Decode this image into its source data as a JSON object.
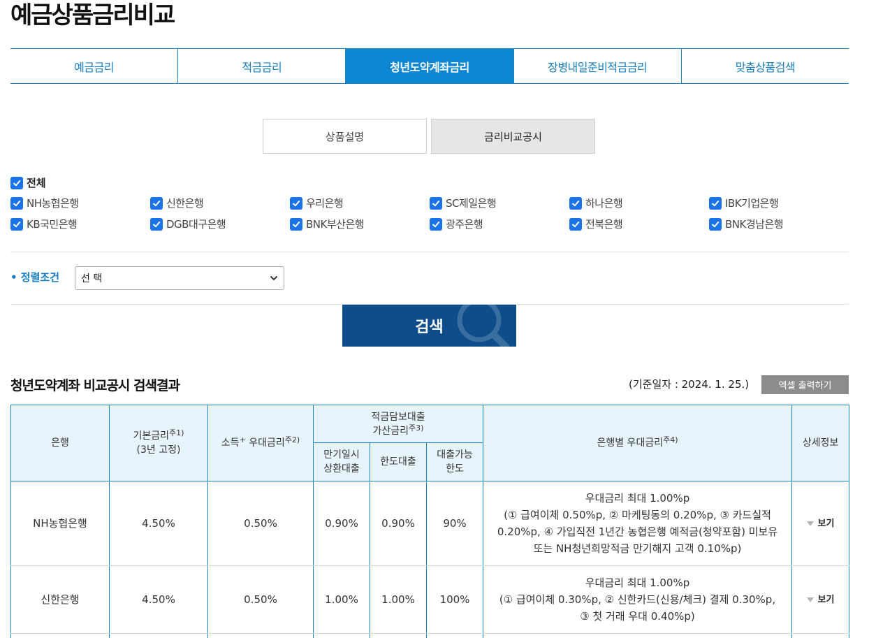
{
  "page_title": "예금상품금리비교",
  "main_tabs": [
    {
      "label": "예금금리"
    },
    {
      "label": "적금금리"
    },
    {
      "label": "청년도약계좌금리"
    },
    {
      "label": "장병내일준비적금금리"
    },
    {
      "label": "맞춤상품검색"
    }
  ],
  "sub_tabs": [
    {
      "label": "상품설명"
    },
    {
      "label": "금리비교공시"
    }
  ],
  "filter": {
    "all_label": "전체",
    "banks": [
      "NH농협은행",
      "신한은행",
      "우리은행",
      "SC제일은행",
      "하나은행",
      "IBK기업은행",
      "KB국민은행",
      "DGB대구은행",
      "BNK부산은행",
      "광주은행",
      "전북은행",
      "BNK경남은행"
    ]
  },
  "sort": {
    "label": "• 정렬조건",
    "selected": "선 택"
  },
  "search_button": "검색",
  "results": {
    "title": "청년도약계좌 비교공시 검색결과",
    "base_date": "(기준일자 : 2024. 1. 25.)",
    "excel_button": "엑셀 출력하기",
    "headers": {
      "bank": "은행",
      "base_rate": "기본금리",
      "base_rate_note": "주1)",
      "base_rate_sub": "(3년 고정)",
      "income": "소득",
      "income_plus": "+",
      "income_rest": " 우대금리",
      "income_note": "주2)",
      "loan_line1": "적금담보대출",
      "loan_line2": "가산금리",
      "loan_note": "주3)",
      "bank_pref": "은행별 우대금리",
      "bank_pref_note": "주4)",
      "detail": "상세정보",
      "loan_sub1_line1": "만기일시",
      "loan_sub1_line2": "상환대출",
      "loan_sub2": "한도대출",
      "loan_sub3_line1": "대출가능",
      "loan_sub3_line2": "한도"
    },
    "rows": [
      {
        "bank": "NH농협은행",
        "base_rate": "4.50%",
        "income_rate": "0.50%",
        "loan_maturity": "0.90%",
        "loan_limit": "0.90%",
        "loan_available": "90%",
        "pref_lines": [
          "우대금리 최대 1.00%p",
          "(① 급여이체 0.50%p, ② 마케팅동의 0.20%p, ③ 카드실적",
          "0.20%p, ④ 가입직전 1년간 농협은행 예적금(청약포함) 미보유",
          "또는 NH청년희망적금 만기해지 고객 0.10%p)"
        ],
        "detail": "보기"
      },
      {
        "bank": "신한은행",
        "base_rate": "4.50%",
        "income_rate": "0.50%",
        "loan_maturity": "1.00%",
        "loan_limit": "1.00%",
        "loan_available": "100%",
        "pref_lines": [
          "우대금리 최대 1.00%p",
          "(① 급여이체 0.30%p, ② 신한카드(신용/체크) 결제 0.30%p,",
          "③ 첫 거래 우대 0.40%p)"
        ],
        "detail": "보기"
      }
    ]
  }
}
